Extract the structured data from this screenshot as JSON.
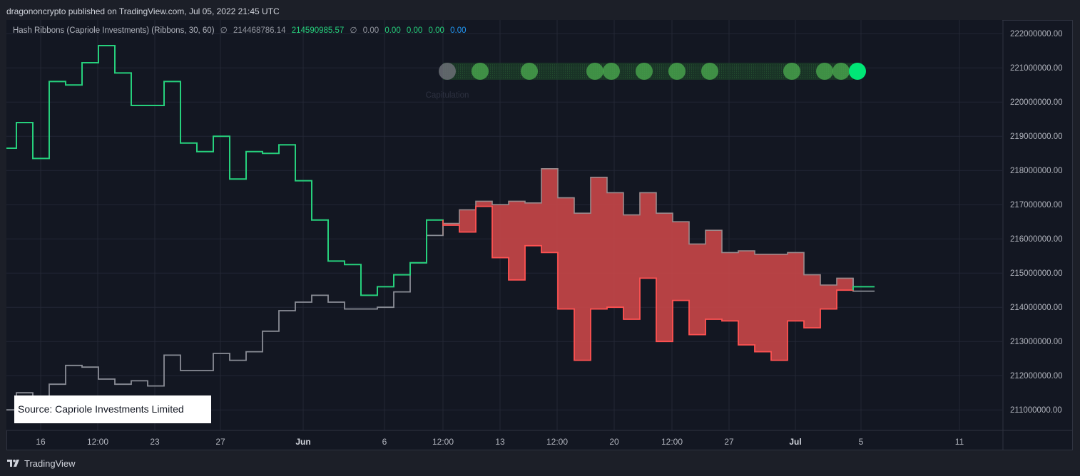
{
  "header": {
    "text": "dragononcrypto published on TradingView.com, Jul 05, 2022 21:45 UTC"
  },
  "legend": {
    "indicator": "Hash Ribbons (Capriole Investments) (Ribbons, 30, 60)",
    "values": [
      {
        "text": "∅",
        "color": "gray"
      },
      {
        "text": "214468786.14",
        "color": "gray"
      },
      {
        "text": "214590985.57",
        "color": "green"
      },
      {
        "text": "∅",
        "color": "gray"
      },
      {
        "text": "0.00",
        "color": "gray"
      },
      {
        "text": "0.00",
        "color": "green"
      },
      {
        "text": "0.00",
        "color": "green"
      },
      {
        "text": "0.00",
        "color": "green"
      },
      {
        "text": "0.00",
        "color": "blue"
      }
    ]
  },
  "source": {
    "text": "Source: Capriole Investments Limited"
  },
  "footer": {
    "brand": "TradingView"
  },
  "colors": {
    "background": "#131722",
    "grid": "#232734",
    "fast_line": "#26d07c",
    "slow_line": "#8a8d96",
    "ribbon_fill": "#c44548",
    "ribbon_edge": "#ff5252",
    "dot": "#4caf50",
    "dot_last": "#00e676",
    "dot_gray": "#6b6e76"
  },
  "chart_data": {
    "type": "line",
    "ylim": [
      210400000,
      222400000
    ],
    "y_ticks": [
      211000000,
      212000000,
      213000000,
      214000000,
      215000000,
      216000000,
      217000000,
      218000000,
      219000000,
      220000000,
      221000000,
      222000000
    ],
    "y_tick_labels": [
      "211000000.00",
      "212000000.00",
      "213000000.00",
      "214000000.00",
      "215000000.00",
      "216000000.00",
      "217000000.00",
      "218000000.00",
      "219000000.00",
      "220000000.00",
      "221000000.00",
      "222000000.00"
    ],
    "x_ticks": [
      "16",
      "12:00",
      "23",
      "27",
      "Jun",
      "6",
      "12:00",
      "13",
      "12:00",
      "20",
      "12:00",
      "27",
      "Jul",
      "5",
      "11"
    ],
    "x_tick_bold": [
      false,
      false,
      false,
      false,
      true,
      false,
      false,
      false,
      false,
      false,
      false,
      false,
      true,
      false,
      false
    ],
    "x_range": [
      0,
      1390
    ],
    "x_tick_x": [
      48,
      128,
      208,
      300,
      416,
      530,
      612,
      692,
      772,
      852,
      933,
      1013,
      1106,
      1198,
      1336
    ],
    "series": [
      {
        "name": "Ribbons 30",
        "role": "fast",
        "points": [
          [
            0,
            218650000
          ],
          [
            14,
            218650000
          ],
          [
            14,
            219400000
          ],
          [
            37,
            219400000
          ],
          [
            37,
            218350000
          ],
          [
            60,
            218350000
          ],
          [
            60,
            220600000
          ],
          [
            83,
            220600000
          ],
          [
            83,
            220500000
          ],
          [
            106,
            220500000
          ],
          [
            106,
            221150000
          ],
          [
            129,
            221150000
          ],
          [
            129,
            221650000
          ],
          [
            152,
            221650000
          ],
          [
            152,
            220850000
          ],
          [
            175,
            220850000
          ],
          [
            175,
            219900000
          ],
          [
            221,
            219900000
          ],
          [
            221,
            220600000
          ],
          [
            244,
            220600000
          ],
          [
            244,
            218800000
          ],
          [
            267,
            218800000
          ],
          [
            267,
            218550000
          ],
          [
            290,
            218550000
          ],
          [
            290,
            219000000
          ],
          [
            313,
            219000000
          ],
          [
            313,
            217750000
          ],
          [
            336,
            217750000
          ],
          [
            336,
            218550000
          ],
          [
            359,
            218550000
          ],
          [
            359,
            218500000
          ],
          [
            382,
            218500000
          ],
          [
            382,
            218750000
          ],
          [
            405,
            218750000
          ],
          [
            405,
            217700000
          ],
          [
            428,
            217700000
          ],
          [
            428,
            216550000
          ],
          [
            451,
            216550000
          ],
          [
            451,
            215350000
          ],
          [
            474,
            215350000
          ],
          [
            474,
            215250000
          ],
          [
            497,
            215250000
          ],
          [
            497,
            214350000
          ],
          [
            520,
            214350000
          ],
          [
            520,
            214600000
          ],
          [
            543,
            214600000
          ],
          [
            543,
            214950000
          ],
          [
            566,
            214950000
          ],
          [
            566,
            215300000
          ],
          [
            589,
            215300000
          ],
          [
            589,
            216550000
          ],
          [
            612,
            216550000
          ],
          [
            612,
            216400000
          ],
          [
            635,
            216400000
          ],
          [
            635,
            216200000
          ],
          [
            658,
            216200000
          ],
          [
            658,
            216950000
          ],
          [
            681,
            216950000
          ],
          [
            681,
            215450000
          ],
          [
            704,
            215450000
          ],
          [
            704,
            214800000
          ],
          [
            727,
            214800000
          ],
          [
            727,
            215800000
          ],
          [
            750,
            215800000
          ],
          [
            750,
            215600000
          ],
          [
            773,
            215600000
          ],
          [
            773,
            213950000
          ],
          [
            796,
            213950000
          ],
          [
            796,
            212450000
          ],
          [
            819,
            212450000
          ],
          [
            819,
            213950000
          ],
          [
            842,
            213950000
          ],
          [
            842,
            214000000
          ],
          [
            865,
            214000000
          ],
          [
            865,
            213650000
          ],
          [
            888,
            213650000
          ],
          [
            888,
            214850000
          ],
          [
            911,
            214850000
          ],
          [
            911,
            213000000
          ],
          [
            934,
            213000000
          ],
          [
            934,
            214200000
          ],
          [
            957,
            214200000
          ],
          [
            957,
            213200000
          ],
          [
            980,
            213200000
          ],
          [
            980,
            213650000
          ],
          [
            1003,
            213650000
          ],
          [
            1003,
            213600000
          ],
          [
            1026,
            213600000
          ],
          [
            1026,
            212900000
          ],
          [
            1049,
            212900000
          ],
          [
            1049,
            212700000
          ],
          [
            1072,
            212700000
          ],
          [
            1072,
            212450000
          ],
          [
            1095,
            212450000
          ],
          [
            1095,
            213600000
          ],
          [
            1118,
            213600000
          ],
          [
            1118,
            213400000
          ],
          [
            1141,
            213400000
          ],
          [
            1141,
            213950000
          ],
          [
            1164,
            213950000
          ],
          [
            1164,
            214500000
          ],
          [
            1187,
            214500000
          ],
          [
            1187,
            214600000
          ],
          [
            1217,
            214600000
          ]
        ]
      },
      {
        "name": "Ribbons 60",
        "role": "slow",
        "points": [
          [
            0,
            211000000
          ],
          [
            14,
            211000000
          ],
          [
            14,
            211500000
          ],
          [
            37,
            211500000
          ],
          [
            37,
            211200000
          ],
          [
            60,
            211200000
          ],
          [
            60,
            211750000
          ],
          [
            83,
            211750000
          ],
          [
            83,
            212300000
          ],
          [
            106,
            212300000
          ],
          [
            106,
            212250000
          ],
          [
            129,
            212250000
          ],
          [
            129,
            211900000
          ],
          [
            152,
            211900000
          ],
          [
            152,
            211750000
          ],
          [
            175,
            211750000
          ],
          [
            175,
            211850000
          ],
          [
            198,
            211850000
          ],
          [
            198,
            211700000
          ],
          [
            221,
            211700000
          ],
          [
            221,
            212600000
          ],
          [
            244,
            212600000
          ],
          [
            244,
            212150000
          ],
          [
            290,
            212150000
          ],
          [
            290,
            212650000
          ],
          [
            313,
            212650000
          ],
          [
            313,
            212450000
          ],
          [
            336,
            212450000
          ],
          [
            336,
            212700000
          ],
          [
            359,
            212700000
          ],
          [
            359,
            213300000
          ],
          [
            382,
            213300000
          ],
          [
            382,
            213900000
          ],
          [
            405,
            213900000
          ],
          [
            405,
            214150000
          ],
          [
            428,
            214150000
          ],
          [
            428,
            214350000
          ],
          [
            451,
            214350000
          ],
          [
            451,
            214150000
          ],
          [
            474,
            214150000
          ],
          [
            474,
            213950000
          ],
          [
            497,
            213950000
          ],
          [
            497,
            213950000
          ],
          [
            520,
            213950000
          ],
          [
            520,
            214000000
          ],
          [
            543,
            214000000
          ],
          [
            543,
            214450000
          ],
          [
            566,
            214450000
          ],
          [
            566,
            215300000
          ],
          [
            589,
            215300000
          ],
          [
            589,
            216100000
          ],
          [
            612,
            216100000
          ],
          [
            612,
            216450000
          ],
          [
            635,
            216450000
          ],
          [
            635,
            216850000
          ],
          [
            658,
            216850000
          ],
          [
            658,
            217100000
          ],
          [
            681,
            217100000
          ],
          [
            681,
            217000000
          ],
          [
            704,
            217000000
          ],
          [
            704,
            217100000
          ],
          [
            727,
            217100000
          ],
          [
            727,
            217050000
          ],
          [
            750,
            217050000
          ],
          [
            750,
            218050000
          ],
          [
            773,
            218050000
          ],
          [
            773,
            217200000
          ],
          [
            796,
            217200000
          ],
          [
            796,
            216750000
          ],
          [
            819,
            216750000
          ],
          [
            819,
            217800000
          ],
          [
            842,
            217800000
          ],
          [
            842,
            217350000
          ],
          [
            865,
            217350000
          ],
          [
            865,
            216700000
          ],
          [
            888,
            216700000
          ],
          [
            888,
            217350000
          ],
          [
            911,
            217350000
          ],
          [
            911,
            216750000
          ],
          [
            934,
            216750000
          ],
          [
            934,
            216500000
          ],
          [
            957,
            216500000
          ],
          [
            957,
            215850000
          ],
          [
            980,
            215850000
          ],
          [
            980,
            216250000
          ],
          [
            1003,
            216250000
          ],
          [
            1003,
            215600000
          ],
          [
            1026,
            215600000
          ],
          [
            1026,
            215650000
          ],
          [
            1049,
            215650000
          ],
          [
            1049,
            215550000
          ],
          [
            1095,
            215550000
          ],
          [
            1095,
            215600000
          ],
          [
            1118,
            215600000
          ],
          [
            1118,
            214950000
          ],
          [
            1141,
            214950000
          ],
          [
            1141,
            214650000
          ],
          [
            1164,
            214650000
          ],
          [
            1164,
            214850000
          ],
          [
            1187,
            214850000
          ],
          [
            1187,
            214470000
          ],
          [
            1217,
            214470000
          ]
        ]
      }
    ],
    "ribbon": {
      "from_x": 612,
      "to_x": 1187
    },
    "capitulation": {
      "label": "Capitulation",
      "y": 220900000,
      "band_from_x": 612,
      "band_to_x": 1187,
      "dots": [
        {
          "x": 618,
          "state": "gray"
        },
        {
          "x": 664,
          "state": "green"
        },
        {
          "x": 733,
          "state": "green"
        },
        {
          "x": 825,
          "state": "green"
        },
        {
          "x": 848,
          "state": "green"
        },
        {
          "x": 894,
          "state": "green"
        },
        {
          "x": 940,
          "state": "green"
        },
        {
          "x": 986,
          "state": "green"
        },
        {
          "x": 1101,
          "state": "green"
        },
        {
          "x": 1147,
          "state": "green"
        },
        {
          "x": 1170,
          "state": "green"
        },
        {
          "x": 1193,
          "state": "bright"
        }
      ]
    }
  }
}
